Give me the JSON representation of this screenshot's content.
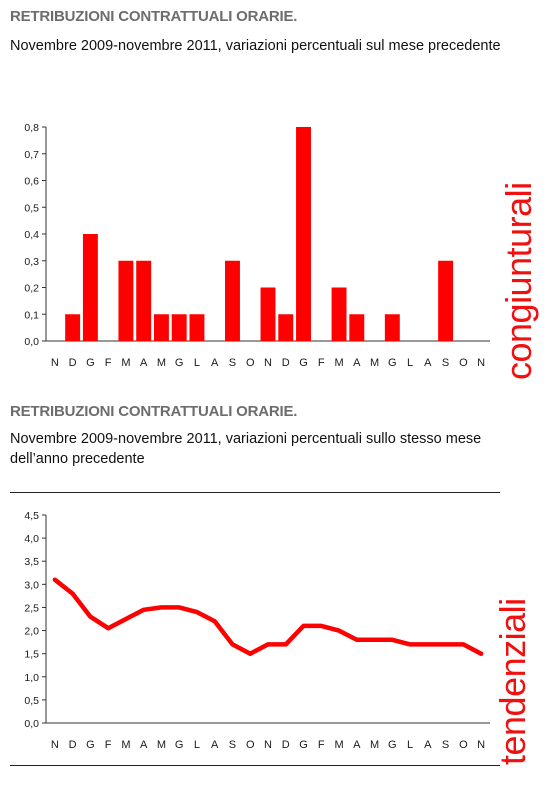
{
  "chart1": {
    "title": "RETRIBUZIONI CONTRATTUALI ORARIE.",
    "subtitle": "Novembre 2009-novembre 2011, variazioni percentuali sul mese precedente",
    "side_label": "congiunturali"
  },
  "chart2": {
    "title": "RETRIBUZIONI CONTRATTUALI ORARIE.",
    "subtitle": "Novembre 2009-novembre 2011, variazioni percentuali sullo stesso mese dell’anno precedente",
    "side_label": "tendenziali"
  },
  "chart_data": [
    {
      "type": "bar",
      "categories": [
        "N",
        "D",
        "G",
        "F",
        "M",
        "A",
        "M",
        "G",
        "L",
        "A",
        "S",
        "O",
        "N",
        "D",
        "G",
        "F",
        "M",
        "A",
        "M",
        "G",
        "L",
        "A",
        "S",
        "O",
        "N"
      ],
      "values": [
        0,
        0.1,
        0.4,
        0,
        0.3,
        0.3,
        0.1,
        0.1,
        0.1,
        0,
        0.3,
        0,
        0.2,
        0.1,
        0.8,
        0,
        0.2,
        0.1,
        0,
        0.1,
        0,
        0,
        0.3,
        0,
        0
      ],
      "ylim": [
        0,
        0.8
      ],
      "yticks": [
        "0,0",
        "0,1",
        "0,2",
        "0,3",
        "0,4",
        "0,5",
        "0,6",
        "0,7",
        "0,8"
      ],
      "grid": false,
      "color": "#ff0000"
    },
    {
      "type": "line",
      "categories": [
        "N",
        "D",
        "G",
        "F",
        "M",
        "A",
        "M",
        "G",
        "L",
        "A",
        "S",
        "O",
        "N",
        "D",
        "G",
        "F",
        "M",
        "A",
        "M",
        "G",
        "L",
        "A",
        "S",
        "O",
        "N"
      ],
      "values": [
        3.1,
        2.8,
        2.3,
        2.05,
        2.25,
        2.45,
        2.5,
        2.5,
        2.4,
        2.2,
        1.7,
        1.5,
        1.7,
        1.7,
        2.1,
        2.1,
        2.0,
        1.8,
        1.8,
        1.8,
        1.7,
        1.7,
        1.7,
        1.7,
        1.5
      ],
      "ylim": [
        0,
        4.5
      ],
      "yticks": [
        "0,0",
        "0,5",
        "1,0",
        "1,5",
        "2,0",
        "2,5",
        "3,0",
        "3,5",
        "4,0",
        "4,5"
      ],
      "grid": false,
      "color": "#ff0000"
    }
  ]
}
